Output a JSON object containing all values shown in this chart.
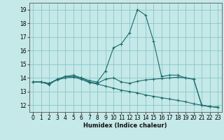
{
  "xlabel": "Humidex (Indice chaleur)",
  "background_color": "#c5e8e8",
  "grid_color": "#7fc0c0",
  "line_color": "#1a6b6b",
  "xlim": [
    -0.5,
    23.5
  ],
  "ylim": [
    11.5,
    19.5
  ],
  "yticks": [
    12,
    13,
    14,
    15,
    16,
    17,
    18,
    19
  ],
  "xticks": [
    0,
    1,
    2,
    3,
    4,
    5,
    6,
    7,
    8,
    9,
    10,
    11,
    12,
    13,
    14,
    15,
    16,
    17,
    18,
    19,
    20,
    21,
    22,
    23
  ],
  "series": [
    [
      13.7,
      13.7,
      13.5,
      13.9,
      14.1,
      14.2,
      14.0,
      13.8,
      13.7,
      14.5,
      16.2,
      16.5,
      17.3,
      19.0,
      18.6,
      16.7,
      14.1,
      14.2,
      14.2,
      14.0,
      13.9,
      12.0,
      11.9,
      11.85
    ],
    [
      13.7,
      13.7,
      13.6,
      13.9,
      14.1,
      14.1,
      14.0,
      13.7,
      13.6,
      13.9,
      14.0,
      13.7,
      13.6,
      13.75,
      13.85,
      13.9,
      13.95,
      14.0,
      14.05,
      14.0,
      13.9,
      12.0,
      11.9,
      11.85
    ],
    [
      13.7,
      13.7,
      13.6,
      13.85,
      14.0,
      14.05,
      13.9,
      13.65,
      13.55,
      13.4,
      13.25,
      13.1,
      13.0,
      12.9,
      12.75,
      12.65,
      12.55,
      12.45,
      12.35,
      12.25,
      12.1,
      12.0,
      11.9,
      11.85
    ]
  ]
}
